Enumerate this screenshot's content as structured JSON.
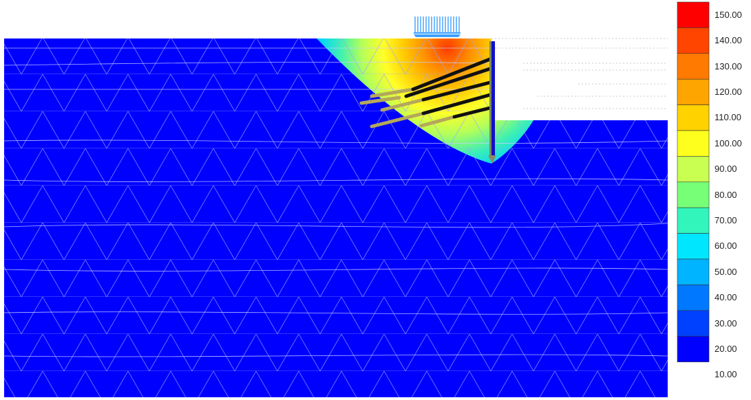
{
  "legend": {
    "swatch_colors": [
      "#ff0000",
      "#ff4500",
      "#ff7a00",
      "#ffa500",
      "#ffd200",
      "#ffff1e",
      "#c8ff50",
      "#78ff78",
      "#32f5bc",
      "#00e6ff",
      "#00b4ff",
      "#0078ff",
      "#0040ff",
      "#0000ff"
    ],
    "labels": [
      "150.00",
      "140.00",
      "130.00",
      "120.00",
      "110.00",
      "100.00",
      "90.00",
      "80.00",
      "70.00",
      "60.00",
      "50.00",
      "40.00",
      "30.00",
      "20.00",
      "10.00"
    ]
  },
  "colors": {
    "soil_base": "#0000ff",
    "mesh_line": "#aab4ff",
    "wall": "#1010c8",
    "anchor_bonded": "#111111",
    "anchor_grout": "#b4a85a",
    "load_arrows": "#3ca0ff"
  },
  "icons": [
    "distributed-load-arrows-icon",
    "wall-tip-icon"
  ]
}
